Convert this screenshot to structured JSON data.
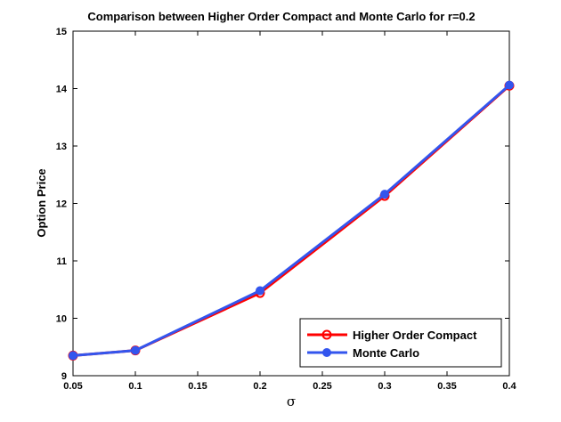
{
  "chart_data": {
    "type": "line",
    "title": "Comparison between Higher Order Compact and Monte Carlo for r=0.2",
    "xlabel": "σ",
    "ylabel": "Option Price",
    "xlim": [
      0.05,
      0.4
    ],
    "ylim": [
      9,
      15
    ],
    "xticks": [
      0.05,
      0.1,
      0.15,
      0.2,
      0.25,
      0.3,
      0.35,
      0.4
    ],
    "xtick_labels": [
      "0.05",
      "0.1",
      "0.15",
      "0.2",
      "0.25",
      "0.3",
      "0.35",
      "0.4"
    ],
    "yticks": [
      9,
      10,
      11,
      12,
      13,
      14,
      15
    ],
    "ytick_labels": [
      "9",
      "10",
      "11",
      "12",
      "13",
      "14",
      "15"
    ],
    "grid": false,
    "legend_position": "bottom-right",
    "x": [
      0.05,
      0.1,
      0.2,
      0.3,
      0.4
    ],
    "series": [
      {
        "name": "Higher Order Compact",
        "values": [
          9.35,
          9.44,
          10.44,
          12.13,
          14.05
        ],
        "color": "#ff0000",
        "marker": "open-circle"
      },
      {
        "name": "Monte Carlo",
        "values": [
          9.35,
          9.44,
          10.48,
          12.16,
          14.06
        ],
        "color": "#3355ee",
        "marker": "filled-circle"
      }
    ]
  }
}
